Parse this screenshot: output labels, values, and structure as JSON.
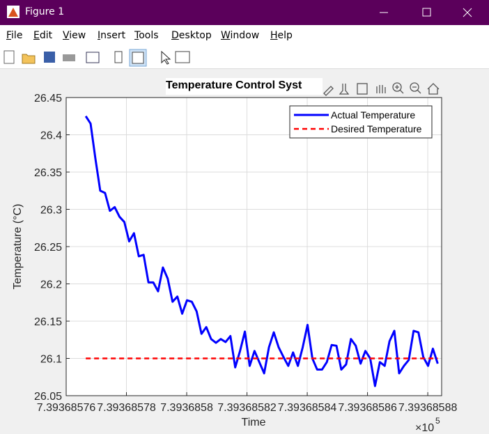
{
  "window": {
    "title": "Figure 1"
  },
  "menu": [
    "File",
    "Edit",
    "View",
    "Insert",
    "Tools",
    "Desktop",
    "Window",
    "Help"
  ],
  "chart_data": {
    "type": "line",
    "title": "Temperature Control Syst",
    "xlabel": "Time",
    "ylabel": "Temperature (°C)",
    "x_multiplier": "×10",
    "x_exponent": 5,
    "x": [
      7.3936857665,
      7.3936857681,
      7.3936857697,
      7.3936857713,
      7.3936857729,
      7.3936857745,
      7.3936857761,
      7.3936857777,
      7.3936857793,
      7.3936857809,
      7.3936857825,
      7.3936857841,
      7.3936857857,
      7.3936857873,
      7.3936857889,
      7.3936857905,
      7.3936857921,
      7.3936857937,
      7.3936857953,
      7.3936857969,
      7.3936857985,
      7.3936858001,
      7.3936858017,
      7.3936858033,
      7.3936858049,
      7.3936858065,
      7.3936858081,
      7.3936858097,
      7.3936858113,
      7.3936858129,
      7.3936858145,
      7.3936858161,
      7.3936858177,
      7.3936858193,
      7.3936858209,
      7.3936858225,
      7.3936858241,
      7.3936858257,
      7.3936858273,
      7.3936858289,
      7.3936858305,
      7.3936858321,
      7.3936858337,
      7.3936858353,
      7.3936858369,
      7.3936858385,
      7.3936858401,
      7.3936858417,
      7.3936858433,
      7.3936858449,
      7.3936858465,
      7.3936858481,
      7.3936858497,
      7.3936858513,
      7.3936858529,
      7.3936858545,
      7.3936858561,
      7.3936858577,
      7.3936858593,
      7.3936858609,
      7.3936858625,
      7.3936858641,
      7.3936858657,
      7.3936858673,
      7.3936858689,
      7.3936858705,
      7.3936858721,
      7.3936858737,
      7.3936858753,
      7.3936858769,
      7.3936858785,
      7.3936858801,
      7.3936858817,
      7.3936858833
    ],
    "series": [
      {
        "name": "Actual Temperature",
        "color": "#0000ff",
        "dash": false,
        "values": [
          26.425,
          26.415,
          26.368,
          26.325,
          26.322,
          26.298,
          26.303,
          26.29,
          26.283,
          26.257,
          26.268,
          26.237,
          26.239,
          26.202,
          26.202,
          26.19,
          26.222,
          26.207,
          26.176,
          26.183,
          26.16,
          26.178,
          26.176,
          26.163,
          26.133,
          26.142,
          26.126,
          26.121,
          26.126,
          26.122,
          26.13,
          26.088,
          26.11,
          26.136,
          26.09,
          26.11,
          26.095,
          26.08,
          26.115,
          26.135,
          26.115,
          26.102,
          26.09,
          26.108,
          26.09,
          26.115,
          26.145,
          26.1,
          26.085,
          26.085,
          26.095,
          26.118,
          26.117,
          26.085,
          26.092,
          26.126,
          26.117,
          26.093,
          26.11,
          26.1,
          26.063,
          26.095,
          26.09,
          26.123,
          26.137,
          26.08,
          26.09,
          26.098,
          26.137,
          26.135,
          26.102,
          26.09,
          26.113,
          26.093
        ]
      },
      {
        "name": "Desired Temperature",
        "color": "#ff0000",
        "dash": true,
        "values": [
          26.1,
          26.1,
          26.1,
          26.1,
          26.1,
          26.1,
          26.1,
          26.1,
          26.1,
          26.1,
          26.1,
          26.1,
          26.1,
          26.1,
          26.1,
          26.1,
          26.1,
          26.1,
          26.1,
          26.1,
          26.1,
          26.1,
          26.1,
          26.1,
          26.1,
          26.1,
          26.1,
          26.1,
          26.1,
          26.1,
          26.1,
          26.1,
          26.1,
          26.1,
          26.1,
          26.1,
          26.1,
          26.1,
          26.1,
          26.1,
          26.1,
          26.1,
          26.1,
          26.1,
          26.1,
          26.1,
          26.1,
          26.1,
          26.1,
          26.1,
          26.1,
          26.1,
          26.1,
          26.1,
          26.1,
          26.1,
          26.1,
          26.1,
          26.1,
          26.1,
          26.1,
          26.1,
          26.1,
          26.1,
          26.1,
          26.1,
          26.1,
          26.1,
          26.1,
          26.1,
          26.1,
          26.1,
          26.1,
          26.1
        ]
      }
    ],
    "xlim": [
      7.39368576,
      7.3936858846
    ],
    "xticks": [
      7.39368576,
      7.39368578,
      7.3936858,
      7.39368582,
      7.39368584,
      7.39368586,
      7.39368588
    ],
    "ylim": [
      26.05,
      26.45
    ],
    "yticks": [
      26.05,
      26.1,
      26.15,
      26.2,
      26.25,
      26.3,
      26.35,
      26.4,
      26.45
    ],
    "grid": true,
    "legend": "northeast"
  }
}
